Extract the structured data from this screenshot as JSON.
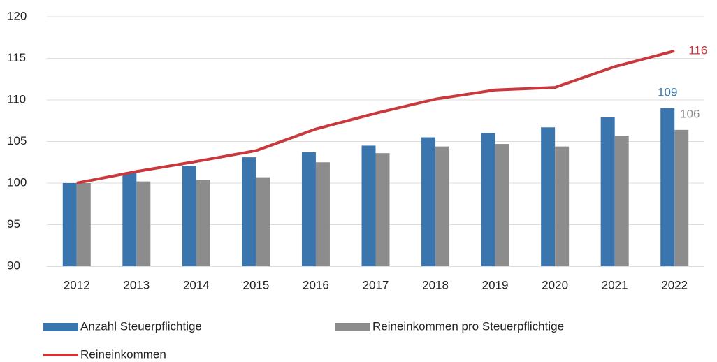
{
  "chart_data": {
    "type": "bar_line",
    "categories": [
      "2012",
      "2013",
      "2014",
      "2015",
      "2016",
      "2017",
      "2018",
      "2019",
      "2020",
      "2021",
      "2022"
    ],
    "series": [
      {
        "name": "Anzahl Steuerpflichtige",
        "type": "bar",
        "color": "#3a76ad",
        "values": [
          100,
          101.2,
          102.1,
          103.1,
          103.7,
          104.5,
          105.5,
          106.0,
          106.7,
          107.9,
          109.0
        ],
        "value_labels": [
          null,
          null,
          null,
          null,
          null,
          null,
          null,
          null,
          null,
          null,
          "109"
        ]
      },
      {
        "name": "Reineinkommen pro Steuerpflichtige",
        "type": "bar",
        "color": "#8c8c8c",
        "values": [
          100,
          100.2,
          100.4,
          100.7,
          102.5,
          103.6,
          104.4,
          104.7,
          104.4,
          105.7,
          106.4
        ],
        "value_labels": [
          null,
          null,
          null,
          null,
          null,
          null,
          null,
          null,
          null,
          null,
          "106"
        ]
      },
      {
        "name": "Reineinkommen",
        "type": "line",
        "color": "#c8383c",
        "values": [
          100,
          101.4,
          102.6,
          103.9,
          106.5,
          108.4,
          110.1,
          111.2,
          111.5,
          114.0,
          115.9
        ],
        "value_labels": [
          null,
          null,
          null,
          null,
          null,
          null,
          null,
          null,
          null,
          null,
          "116"
        ]
      }
    ],
    "ylim": [
      90,
      120
    ],
    "yticks": [
      90,
      95,
      100,
      105,
      110,
      115,
      120
    ],
    "grid": true,
    "legend": "bottom"
  }
}
